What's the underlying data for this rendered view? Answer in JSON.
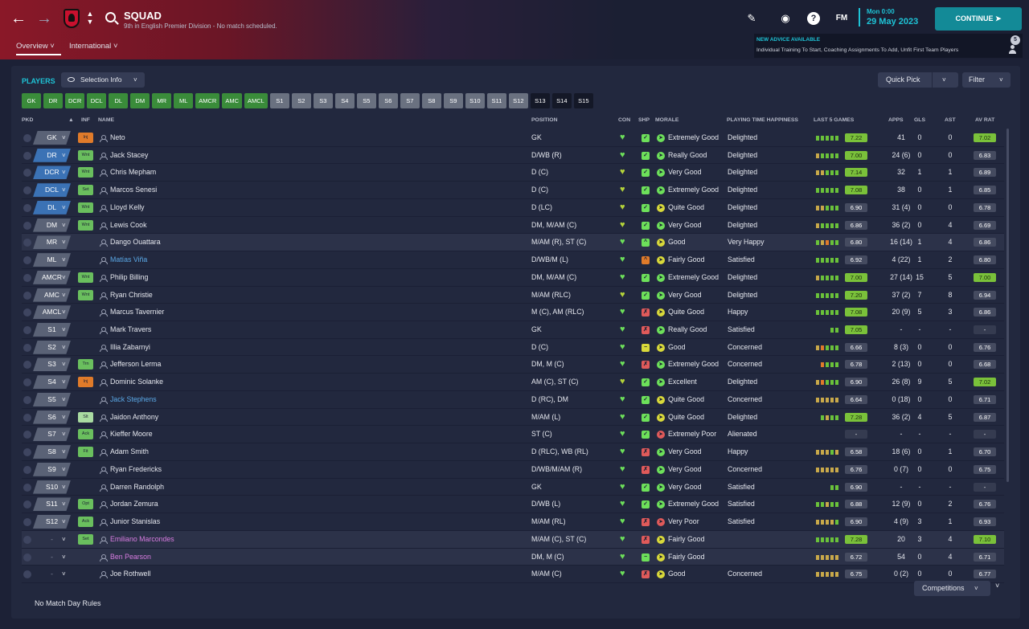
{
  "header": {
    "title": "SQUAD",
    "subtitle": "9th in English Premier Division - No match scheduled.",
    "tabs": [
      {
        "label": "Overview"
      },
      {
        "label": "International"
      }
    ],
    "fm_logo": "FM",
    "date": {
      "time": "Mon 0:00",
      "day": "29 May 2023"
    },
    "continue_label": "CONTINUE",
    "advice": {
      "title": "NEW ADVICE AVAILABLE",
      "text": "Individual Training To Start, Coaching Assignments To Add, Unfit First Team Players",
      "count": "5"
    }
  },
  "toolbar": {
    "players_label": "PLAYERS",
    "selection_info_label": "Selection Info",
    "quick_pick_label": "Quick Pick",
    "filter_label": "Filter"
  },
  "position_filters": [
    {
      "label": "GK",
      "state": "g"
    },
    {
      "label": "DR",
      "state": "g"
    },
    {
      "label": "DCR",
      "state": "g"
    },
    {
      "label": "DCL",
      "state": "g"
    },
    {
      "label": "DL",
      "state": "g"
    },
    {
      "label": "DM",
      "state": "g"
    },
    {
      "label": "MR",
      "state": "g"
    },
    {
      "label": "ML",
      "state": "g"
    },
    {
      "label": "AMCR",
      "state": "g"
    },
    {
      "label": "AMC",
      "state": "g"
    },
    {
      "label": "AMCL",
      "state": "g"
    },
    {
      "label": "S1",
      "state": "s"
    },
    {
      "label": "S2",
      "state": "s"
    },
    {
      "label": "S3",
      "state": "s"
    },
    {
      "label": "S4",
      "state": "s"
    },
    {
      "label": "S5",
      "state": "s"
    },
    {
      "label": "S6",
      "state": "s"
    },
    {
      "label": "S7",
      "state": "s"
    },
    {
      "label": "S8",
      "state": "s"
    },
    {
      "label": "S9",
      "state": "s"
    },
    {
      "label": "S10",
      "state": "s"
    },
    {
      "label": "S11",
      "state": "s"
    },
    {
      "label": "S12",
      "state": "s"
    },
    {
      "label": "S13",
      "state": "d"
    },
    {
      "label": "S14",
      "state": "d"
    },
    {
      "label": "S15",
      "state": "d"
    }
  ],
  "columns": {
    "pkd": "PKD",
    "sort_arrow": "▲",
    "inf": "INF",
    "name": "NAME",
    "position": "POSITION",
    "con": "CON",
    "shp": "SHP",
    "morale": "MORALE",
    "happiness": "PLAYING TIME HAPPINESS",
    "last5": "LAST 5 GAMES",
    "apps": "APPS",
    "gls": "GLS",
    "ast": "AST",
    "avrat": "AV RAT"
  },
  "colors": {
    "starter_pkd": "#5a6276",
    "defender_pkd": "#3b72b5",
    "sub_pkd": "#5a6276",
    "good": "#7ac13a",
    "con_yellow": "#b5d43a",
    "blue_name": "#5aa8e6",
    "pink_name": "#d77ce0"
  },
  "players": [
    {
      "pkd": "GK",
      "pkd_type": "st",
      "inf": "Inj",
      "inf_color": "#e07b2a",
      "name": "Neto",
      "name_color": "",
      "position": "GK",
      "con": "#6de05a",
      "shp": "✓",
      "shp_color": "#6de05a",
      "mor": "#6de05a",
      "morale": "Extremely Good",
      "happiness": "Delighted",
      "l5": [
        "#6ac23a",
        "#6ac23a",
        "#6ac23a",
        "#6ac23a",
        "#6ac23a"
      ],
      "l5_rating": "7.22",
      "l5_good": true,
      "apps": "41",
      "gls": "0",
      "ast": "0",
      "avrat": "7.02",
      "avrat_good": true,
      "hl": false
    },
    {
      "pkd": "DR",
      "pkd_type": "d",
      "inf": "Wnt",
      "inf_color": "#6abf5e",
      "name": "Jack Stacey",
      "name_color": "",
      "position": "D/WB (R)",
      "con": "#6de05a",
      "shp": "✓",
      "shp_color": "#6de05a",
      "mor": "#6de05a",
      "morale": "Really Good",
      "happiness": "Delighted",
      "l5": [
        "#c9a94a",
        "#6ac23a",
        "#6ac23a",
        "#6ac23a",
        "#6ac23a"
      ],
      "l5_rating": "7.00",
      "l5_good": true,
      "apps": "24 (6)",
      "gls": "0",
      "ast": "0",
      "avrat": "6.83",
      "avrat_good": false,
      "hl": false
    },
    {
      "pkd": "DCR",
      "pkd_type": "d",
      "inf": "Wnt",
      "inf_color": "#6abf5e",
      "name": "Chris Mepham",
      "name_color": "",
      "position": "D (C)",
      "con": "#b5d43a",
      "shp": "✓",
      "shp_color": "#6de05a",
      "mor": "#6de05a",
      "morale": "Very Good",
      "happiness": "Delighted",
      "l5": [
        "#c9a94a",
        "#c9a94a",
        "#6ac23a",
        "#6ac23a",
        "#6ac23a"
      ],
      "l5_rating": "7.14",
      "l5_good": true,
      "apps": "32",
      "gls": "1",
      "ast": "1",
      "avrat": "6.89",
      "avrat_good": false,
      "hl": false
    },
    {
      "pkd": "DCL",
      "pkd_type": "d",
      "inf": "Set",
      "inf_color": "#6abf5e",
      "name": "Marcos Senesi",
      "name_color": "",
      "position": "D (C)",
      "con": "#b5d43a",
      "shp": "✓",
      "shp_color": "#6de05a",
      "mor": "#6de05a",
      "morale": "Extremely Good",
      "happiness": "Delighted",
      "l5": [
        "#6ac23a",
        "#6ac23a",
        "#6ac23a",
        "#6ac23a",
        "#6ac23a"
      ],
      "l5_rating": "7.08",
      "l5_good": true,
      "apps": "38",
      "gls": "0",
      "ast": "1",
      "avrat": "6.85",
      "avrat_good": false,
      "hl": false
    },
    {
      "pkd": "DL",
      "pkd_type": "d",
      "inf": "Wnt",
      "inf_color": "#6abf5e",
      "name": "Lloyd Kelly",
      "name_color": "",
      "position": "D (LC)",
      "con": "#b5d43a",
      "shp": "✓",
      "shp_color": "#6de05a",
      "mor": "#d9d93a",
      "morale": "Quite Good",
      "happiness": "Delighted",
      "l5": [
        "#c9a94a",
        "#c9a94a",
        "#6ac23a",
        "#6ac23a",
        "#6ac23a"
      ],
      "l5_rating": "6.90",
      "l5_good": false,
      "apps": "31 (4)",
      "gls": "0",
      "ast": "0",
      "avrat": "6.78",
      "avrat_good": false,
      "hl": false
    },
    {
      "pkd": "DM",
      "pkd_type": "st",
      "inf": "Wnt",
      "inf_color": "#6abf5e",
      "name": "Lewis Cook",
      "name_color": "",
      "position": "DM, M/AM (C)",
      "con": "#b5d43a",
      "shp": "✓",
      "shp_color": "#6de05a",
      "mor": "#6de05a",
      "morale": "Very Good",
      "happiness": "Delighted",
      "l5": [
        "#c9a94a",
        "#6ac23a",
        "#6ac23a",
        "#6ac23a",
        "#6ac23a"
      ],
      "l5_rating": "6.86",
      "l5_good": false,
      "apps": "36 (2)",
      "gls": "0",
      "ast": "4",
      "avrat": "6.69",
      "avrat_good": false,
      "hl": false
    },
    {
      "pkd": "MR",
      "pkd_type": "st",
      "inf": "",
      "inf_color": "",
      "name": "Dango Ouattara",
      "name_color": "",
      "position": "M/AM (R), ST (C)",
      "con": "#6de05a",
      "shp": "^",
      "shp_color": "#6de05a",
      "mor": "#d9d93a",
      "morale": "Good",
      "happiness": "Very Happy",
      "l5": [
        "#6ac23a",
        "#c9a94a",
        "#e07b2a",
        "#6ac23a",
        "#6ac23a"
      ],
      "l5_rating": "6.80",
      "l5_good": false,
      "apps": "16 (14)",
      "gls": "1",
      "ast": "4",
      "avrat": "6.86",
      "avrat_good": false,
      "hl": true
    },
    {
      "pkd": "ML",
      "pkd_type": "st",
      "inf": "",
      "inf_color": "",
      "name": "Matías Viña",
      "name_color": "#5aa8e6",
      "position": "D/WB/M (L)",
      "con": "#6de05a",
      "shp": "^",
      "shp_color": "#e07b2a",
      "mor": "#d9d93a",
      "morale": "Fairly Good",
      "happiness": "Satisfied",
      "l5": [
        "#6ac23a",
        "#6ac23a",
        "#6ac23a",
        "#6ac23a",
        "#6ac23a"
      ],
      "l5_rating": "6.92",
      "l5_good": false,
      "apps": "4 (22)",
      "gls": "1",
      "ast": "2",
      "avrat": "6.80",
      "avrat_good": false,
      "hl": false
    },
    {
      "pkd": "AMCR",
      "pkd_type": "st",
      "inf": "Wnt",
      "inf_color": "#6abf5e",
      "name": "Philip Billing",
      "name_color": "",
      "position": "DM, M/AM (C)",
      "con": "#6de05a",
      "shp": "✓",
      "shp_color": "#6de05a",
      "mor": "#6de05a",
      "morale": "Extremely Good",
      "happiness": "Delighted",
      "l5": [
        "#c9a94a",
        "#6ac23a",
        "#6ac23a",
        "#6ac23a",
        "#6ac23a"
      ],
      "l5_rating": "7.00",
      "l5_good": true,
      "apps": "27 (14)",
      "gls": "15",
      "ast": "5",
      "avrat": "7.00",
      "avrat_good": true,
      "hl": false
    },
    {
      "pkd": "AMC",
      "pkd_type": "st",
      "inf": "Wnt",
      "inf_color": "#6abf5e",
      "name": "Ryan Christie",
      "name_color": "",
      "position": "M/AM (RLC)",
      "con": "#b5d43a",
      "shp": "✓",
      "shp_color": "#6de05a",
      "mor": "#6de05a",
      "morale": "Very Good",
      "happiness": "Delighted",
      "l5": [
        "#6ac23a",
        "#6ac23a",
        "#6ac23a",
        "#6ac23a",
        "#6ac23a"
      ],
      "l5_rating": "7.20",
      "l5_good": true,
      "apps": "37 (2)",
      "gls": "7",
      "ast": "8",
      "avrat": "6.94",
      "avrat_good": false,
      "hl": false
    },
    {
      "pkd": "AMCL",
      "pkd_type": "st",
      "inf": "",
      "inf_color": "",
      "name": "Marcus Tavernier",
      "name_color": "",
      "position": "M (C), AM (RLC)",
      "con": "#6de05a",
      "shp": "✗",
      "shp_color": "#e05a5a",
      "mor": "#d9d93a",
      "morale": "Quite Good",
      "happiness": "Happy",
      "l5": [
        "#6ac23a",
        "#6ac23a",
        "#6ac23a",
        "#6ac23a",
        "#6ac23a"
      ],
      "l5_rating": "7.08",
      "l5_good": true,
      "apps": "20 (9)",
      "gls": "5",
      "ast": "3",
      "avrat": "6.86",
      "avrat_good": false,
      "hl": false
    },
    {
      "pkd": "S1",
      "pkd_type": "s",
      "inf": "",
      "inf_color": "",
      "name": "Mark Travers",
      "name_color": "",
      "position": "GK",
      "con": "#6de05a",
      "shp": "✗",
      "shp_color": "#e05a5a",
      "mor": "#6de05a",
      "morale": "Really Good",
      "happiness": "Satisfied",
      "l5": [
        "",
        "",
        "",
        "#6ac23a",
        "#6ac23a"
      ],
      "l5_rating": "7.05",
      "l5_good": true,
      "apps": "-",
      "gls": "-",
      "ast": "-",
      "avrat": "-",
      "avrat_good": false,
      "hl": false
    },
    {
      "pkd": "S2",
      "pkd_type": "s",
      "inf": "",
      "inf_color": "",
      "name": "Illia Zabarnyi",
      "name_color": "",
      "position": "D (C)",
      "con": "#6de05a",
      "shp": "−",
      "shp_color": "#d9d93a",
      "mor": "#d9d93a",
      "morale": "Good",
      "happiness": "Concerned",
      "l5": [
        "#c9a94a",
        "#e07b2a",
        "#6ac23a",
        "#6ac23a",
        "#6ac23a"
      ],
      "l5_rating": "6.66",
      "l5_good": false,
      "apps": "8 (3)",
      "gls": "0",
      "ast": "0",
      "avrat": "6.76",
      "avrat_good": false,
      "hl": false
    },
    {
      "pkd": "S3",
      "pkd_type": "s",
      "inf": "Trn",
      "inf_color": "#6abf5e",
      "name": "Jefferson Lerma",
      "name_color": "",
      "position": "DM, M (C)",
      "con": "#6de05a",
      "shp": "✗",
      "shp_color": "#e05a5a",
      "mor": "#6de05a",
      "morale": "Extremely Good",
      "happiness": "Concerned",
      "l5": [
        "",
        "#e07b2a",
        "#6ac23a",
        "#6ac23a",
        "#6ac23a"
      ],
      "l5_rating": "6.78",
      "l5_good": false,
      "apps": "2 (13)",
      "gls": "0",
      "ast": "0",
      "avrat": "6.68",
      "avrat_good": false,
      "hl": false
    },
    {
      "pkd": "S4",
      "pkd_type": "s",
      "inf": "Inj",
      "inf_color": "#e07b2a",
      "name": "Dominic Solanke",
      "name_color": "",
      "position": "AM (C), ST (C)",
      "con": "#b5d43a",
      "shp": "✓",
      "shp_color": "#6de05a",
      "mor": "#6de05a",
      "morale": "Excellent",
      "happiness": "Delighted",
      "l5": [
        "#c9a94a",
        "#e07b2a",
        "#6ac23a",
        "#6ac23a",
        "#6ac23a"
      ],
      "l5_rating": "6.90",
      "l5_good": false,
      "apps": "26 (8)",
      "gls": "9",
      "ast": "5",
      "avrat": "7.02",
      "avrat_good": true,
      "hl": false
    },
    {
      "pkd": "S5",
      "pkd_type": "s",
      "inf": "",
      "inf_color": "",
      "name": "Jack Stephens",
      "name_color": "#5aa8e6",
      "position": "D (RC), DM",
      "con": "#6de05a",
      "shp": "✓",
      "shp_color": "#6de05a",
      "mor": "#d9d93a",
      "morale": "Quite Good",
      "happiness": "Concerned",
      "l5": [
        "#c9a94a",
        "#c9a94a",
        "#c9a94a",
        "#c9a94a",
        "#c9a94a"
      ],
      "l5_rating": "6.64",
      "l5_good": false,
      "apps": "0 (18)",
      "gls": "0",
      "ast": "0",
      "avrat": "6.71",
      "avrat_good": false,
      "hl": false
    },
    {
      "pkd": "S6",
      "pkd_type": "s",
      "inf": "Slt",
      "inf_color": "#a9dba1",
      "name": "Jaidon Anthony",
      "name_color": "",
      "position": "M/AM (L)",
      "con": "#6de05a",
      "shp": "✓",
      "shp_color": "#6de05a",
      "mor": "#d9d93a",
      "morale": "Quite Good",
      "happiness": "Delighted",
      "l5": [
        "",
        "#6ac23a",
        "#c9a94a",
        "#6ac23a",
        "#6ac23a"
      ],
      "l5_rating": "7.28",
      "l5_good": true,
      "apps": "36 (2)",
      "gls": "4",
      "ast": "5",
      "avrat": "6.87",
      "avrat_good": false,
      "hl": false
    },
    {
      "pkd": "S7",
      "pkd_type": "s",
      "inf": "Ack",
      "inf_color": "#6abf5e",
      "name": "Kieffer Moore",
      "name_color": "",
      "position": "ST (C)",
      "con": "#6de05a",
      "shp": "✓",
      "shp_color": "#6de05a",
      "mor": "#e05a5a",
      "morale": "Extremely Poor",
      "happiness": "Alienated",
      "l5": [],
      "l5_rating": "-",
      "l5_good": false,
      "apps": "-",
      "gls": "-",
      "ast": "-",
      "avrat": "-",
      "avrat_good": false,
      "hl": false
    },
    {
      "pkd": "S8",
      "pkd_type": "s",
      "inf": "Fit",
      "inf_color": "#6abf5e",
      "name": "Adam Smith",
      "name_color": "",
      "position": "D (RLC), WB (RL)",
      "con": "#6de05a",
      "shp": "✗",
      "shp_color": "#e05a5a",
      "mor": "#6de05a",
      "morale": "Very Good",
      "happiness": "Happy",
      "l5": [
        "#c9a94a",
        "#c9a94a",
        "#c9a94a",
        "#6ac23a",
        "#c9a94a"
      ],
      "l5_rating": "6.58",
      "l5_good": false,
      "apps": "18 (6)",
      "gls": "0",
      "ast": "1",
      "avrat": "6.70",
      "avrat_good": false,
      "hl": false
    },
    {
      "pkd": "S9",
      "pkd_type": "s",
      "inf": "",
      "inf_color": "",
      "name": "Ryan Fredericks",
      "name_color": "",
      "position": "D/WB/M/AM (R)",
      "con": "#6de05a",
      "shp": "✗",
      "shp_color": "#e05a5a",
      "mor": "#6de05a",
      "morale": "Very Good",
      "happiness": "Concerned",
      "l5": [
        "#c9a94a",
        "#c9a94a",
        "#c9a94a",
        "#c9a94a",
        "#c9a94a"
      ],
      "l5_rating": "6.76",
      "l5_good": false,
      "apps": "0 (7)",
      "gls": "0",
      "ast": "0",
      "avrat": "6.75",
      "avrat_good": false,
      "hl": false
    },
    {
      "pkd": "S10",
      "pkd_type": "s",
      "inf": "",
      "inf_color": "",
      "name": "Darren Randolph",
      "name_color": "",
      "position": "GK",
      "con": "#6de05a",
      "shp": "✓",
      "shp_color": "#6de05a",
      "mor": "#6de05a",
      "morale": "Very Good",
      "happiness": "Satisfied",
      "l5": [
        "",
        "",
        "",
        "#6ac23a",
        "#6ac23a"
      ],
      "l5_rating": "6.90",
      "l5_good": false,
      "apps": "-",
      "gls": "-",
      "ast": "-",
      "avrat": "-",
      "avrat_good": false,
      "hl": false
    },
    {
      "pkd": "S11",
      "pkd_type": "s",
      "inf": "Opt",
      "inf_color": "#6abf5e",
      "name": "Jordan Zemura",
      "name_color": "",
      "position": "D/WB (L)",
      "con": "#6de05a",
      "shp": "✓",
      "shp_color": "#6de05a",
      "mor": "#6de05a",
      "morale": "Extremely Good",
      "happiness": "Satisfied",
      "l5": [
        "#6ac23a",
        "#6ac23a",
        "#c9a94a",
        "#6ac23a",
        "#6ac23a"
      ],
      "l5_rating": "6.88",
      "l5_good": false,
      "apps": "12 (9)",
      "gls": "0",
      "ast": "2",
      "avrat": "6.76",
      "avrat_good": false,
      "hl": false
    },
    {
      "pkd": "S12",
      "pkd_type": "s",
      "inf": "Ack",
      "inf_color": "#6abf5e",
      "name": "Junior Stanislas",
      "name_color": "",
      "position": "M/AM (RL)",
      "con": "#6de05a",
      "shp": "✗",
      "shp_color": "#e05a5a",
      "mor": "#e05a5a",
      "morale": "Very Poor",
      "happiness": "Satisfied",
      "l5": [
        "#c9a94a",
        "#c9a94a",
        "#c9a94a",
        "#c9a94a",
        "#6ac23a"
      ],
      "l5_rating": "6.90",
      "l5_good": false,
      "apps": "4 (9)",
      "gls": "3",
      "ast": "1",
      "avrat": "6.93",
      "avrat_good": false,
      "hl": false
    },
    {
      "pkd": "-",
      "pkd_type": "none",
      "inf": "Set",
      "inf_color": "#6abf5e",
      "name": "Emiliano Marcondes",
      "name_color": "#d77ce0",
      "position": "M/AM (C), ST (C)",
      "con": "#6de05a",
      "shp": "✗",
      "shp_color": "#e05a5a",
      "mor": "#d9d93a",
      "morale": "Fairly Good",
      "happiness": "",
      "l5": [
        "#6ac23a",
        "#6ac23a",
        "#6ac23a",
        "#6ac23a",
        "#6ac23a"
      ],
      "l5_rating": "7.28",
      "l5_good": true,
      "apps": "20",
      "gls": "3",
      "ast": "4",
      "avrat": "7.10",
      "avrat_good": true,
      "hl": true
    },
    {
      "pkd": "-",
      "pkd_type": "none",
      "inf": "",
      "inf_color": "",
      "name": "Ben Pearson",
      "name_color": "#d77ce0",
      "position": "DM, M (C)",
      "con": "#6de05a",
      "shp": "−",
      "shp_color": "#6de05a",
      "mor": "#d9d93a",
      "morale": "Fairly Good",
      "happiness": "",
      "l5": [
        "#c9a94a",
        "#c9a94a",
        "#c9a94a",
        "#c9a94a",
        "#c9a94a"
      ],
      "l5_rating": "6.72",
      "l5_good": false,
      "apps": "54",
      "gls": "0",
      "ast": "4",
      "avrat": "6.71",
      "avrat_good": false,
      "hl": true
    },
    {
      "pkd": "-",
      "pkd_type": "none",
      "inf": "",
      "inf_color": "",
      "name": "Joe Rothwell",
      "name_color": "",
      "position": "M/AM (C)",
      "con": "#6de05a",
      "shp": "✗",
      "shp_color": "#e05a5a",
      "mor": "#d9d93a",
      "morale": "Good",
      "happiness": "Concerned",
      "l5": [
        "#c9a94a",
        "#c9a94a",
        "#c9a94a",
        "#c9a94a",
        "#c9a94a"
      ],
      "l5_rating": "6.75",
      "l5_good": false,
      "apps": "0 (2)",
      "gls": "0",
      "ast": "0",
      "avrat": "6.77",
      "avrat_good": false,
      "hl": false
    }
  ],
  "footer": {
    "rules_label": "No Match Day Rules",
    "competitions_label": "Competitions"
  }
}
